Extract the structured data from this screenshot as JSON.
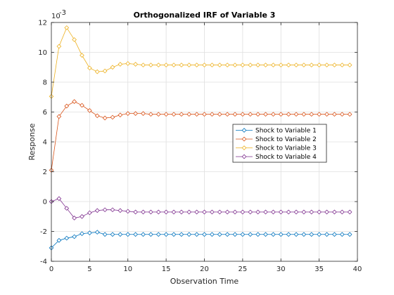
{
  "chart_data": {
    "type": "line",
    "title": "Orthogonalized IRF of Variable 3",
    "xlabel": "Observation Time",
    "ylabel": "Response",
    "exponent_label": "10",
    "exponent_power": "-3",
    "xlim": [
      0,
      40
    ],
    "ylim": [
      -4,
      12
    ],
    "x_ticks": [
      "0",
      "5",
      "10",
      "15",
      "20",
      "25",
      "30",
      "35",
      "40"
    ],
    "y_ticks": [
      "-4",
      "-2",
      "0",
      "2",
      "4",
      "6",
      "8",
      "10",
      "12"
    ],
    "grid": true,
    "legend_position": "center-right",
    "x": [
      0,
      1,
      2,
      3,
      4,
      5,
      6,
      7,
      8,
      9,
      10,
      11,
      12,
      13,
      14,
      15,
      16,
      17,
      18,
      19,
      20,
      21,
      22,
      23,
      24,
      25,
      26,
      27,
      28,
      29,
      30,
      31,
      32,
      33,
      34,
      35,
      36,
      37,
      38,
      39
    ],
    "series": [
      {
        "name": "Shock to Variable 1",
        "color": "#0072BD",
        "values": [
          -3.1,
          -2.6,
          -2.45,
          -2.35,
          -2.15,
          -2.1,
          -2.05,
          -2.2,
          -2.2,
          -2.2,
          -2.2,
          -2.2,
          -2.2,
          -2.2,
          -2.2,
          -2.2,
          -2.2,
          -2.2,
          -2.2,
          -2.2,
          -2.2,
          -2.2,
          -2.2,
          -2.2,
          -2.2,
          -2.2,
          -2.2,
          -2.2,
          -2.2,
          -2.2,
          -2.2,
          -2.2,
          -2.2,
          -2.2,
          -2.2,
          -2.2,
          -2.2,
          -2.2,
          -2.2,
          -2.2
        ]
      },
      {
        "name": "Shock to Variable 2",
        "color": "#D95319",
        "values": [
          2.1,
          5.7,
          6.4,
          6.7,
          6.45,
          6.1,
          5.75,
          5.6,
          5.65,
          5.8,
          5.9,
          5.9,
          5.9,
          5.85,
          5.85,
          5.85,
          5.85,
          5.85,
          5.85,
          5.85,
          5.85,
          5.85,
          5.85,
          5.85,
          5.85,
          5.85,
          5.85,
          5.85,
          5.85,
          5.85,
          5.85,
          5.85,
          5.85,
          5.85,
          5.85,
          5.85,
          5.85,
          5.85,
          5.85,
          5.85
        ]
      },
      {
        "name": "Shock to Variable 3",
        "color": "#EDB120",
        "values": [
          7.05,
          10.4,
          11.65,
          10.85,
          9.8,
          8.95,
          8.7,
          8.75,
          9.0,
          9.2,
          9.25,
          9.2,
          9.15,
          9.15,
          9.15,
          9.15,
          9.15,
          9.15,
          9.15,
          9.15,
          9.15,
          9.15,
          9.15,
          9.15,
          9.15,
          9.15,
          9.15,
          9.15,
          9.15,
          9.15,
          9.15,
          9.15,
          9.15,
          9.15,
          9.15,
          9.15,
          9.15,
          9.15,
          9.15,
          9.15
        ]
      },
      {
        "name": "Shock to Variable 4",
        "color": "#7E2F8E",
        "values": [
          0.0,
          0.2,
          -0.45,
          -1.1,
          -1.0,
          -0.75,
          -0.6,
          -0.55,
          -0.55,
          -0.6,
          -0.65,
          -0.7,
          -0.7,
          -0.7,
          -0.7,
          -0.7,
          -0.7,
          -0.7,
          -0.7,
          -0.7,
          -0.7,
          -0.7,
          -0.7,
          -0.7,
          -0.7,
          -0.7,
          -0.7,
          -0.7,
          -0.7,
          -0.7,
          -0.7,
          -0.7,
          -0.7,
          -0.7,
          -0.7,
          -0.7,
          -0.7,
          -0.7,
          -0.7,
          -0.7
        ]
      }
    ]
  }
}
